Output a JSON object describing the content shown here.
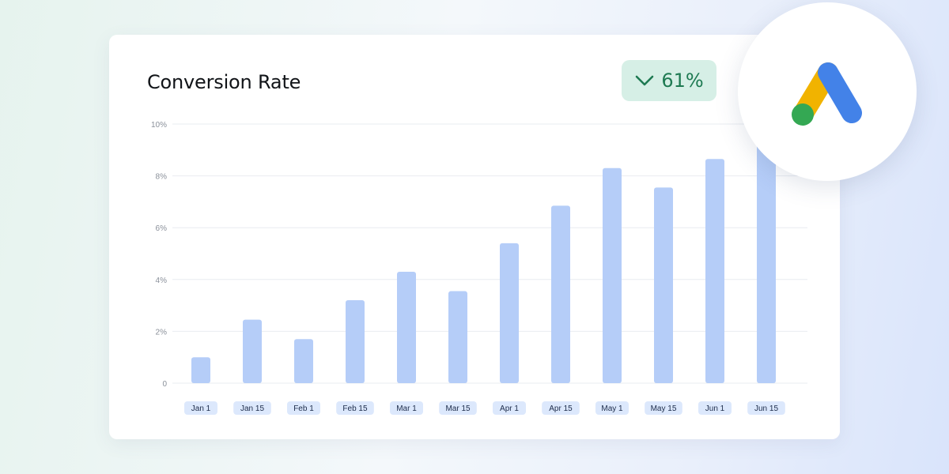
{
  "card": {
    "title": "Conversion Rate",
    "badge": {
      "direction_icon": "chevron-down-icon",
      "value": "61%",
      "color": "#1e7a52",
      "background": "#d6efe6"
    }
  },
  "logo": {
    "name": "google-ads-logo",
    "colors": [
      "#f1b300",
      "#4382e8",
      "#34a853"
    ]
  },
  "chart_data": {
    "type": "bar",
    "title": "Conversion Rate",
    "xlabel": "",
    "ylabel": "",
    "categories": [
      "Jan 1",
      "Jan 15",
      "Feb 1",
      "Feb 15",
      "Mar 1",
      "Mar 15",
      "Apr 1",
      "Apr 15",
      "May 1",
      "May 15",
      "Jun 1",
      "Jun 15"
    ],
    "values": [
      1.0,
      2.45,
      1.7,
      3.2,
      4.3,
      3.55,
      5.4,
      6.85,
      8.3,
      7.55,
      8.65,
      9.5
    ],
    "ylim": [
      0,
      10
    ],
    "yticks": [
      "0",
      "2%",
      "4%",
      "6%",
      "8%",
      "10%"
    ],
    "grid": true,
    "bar_color": "#b5cdf8",
    "label_bg": "#dce8fc",
    "label_color": "#1c2b4a"
  }
}
